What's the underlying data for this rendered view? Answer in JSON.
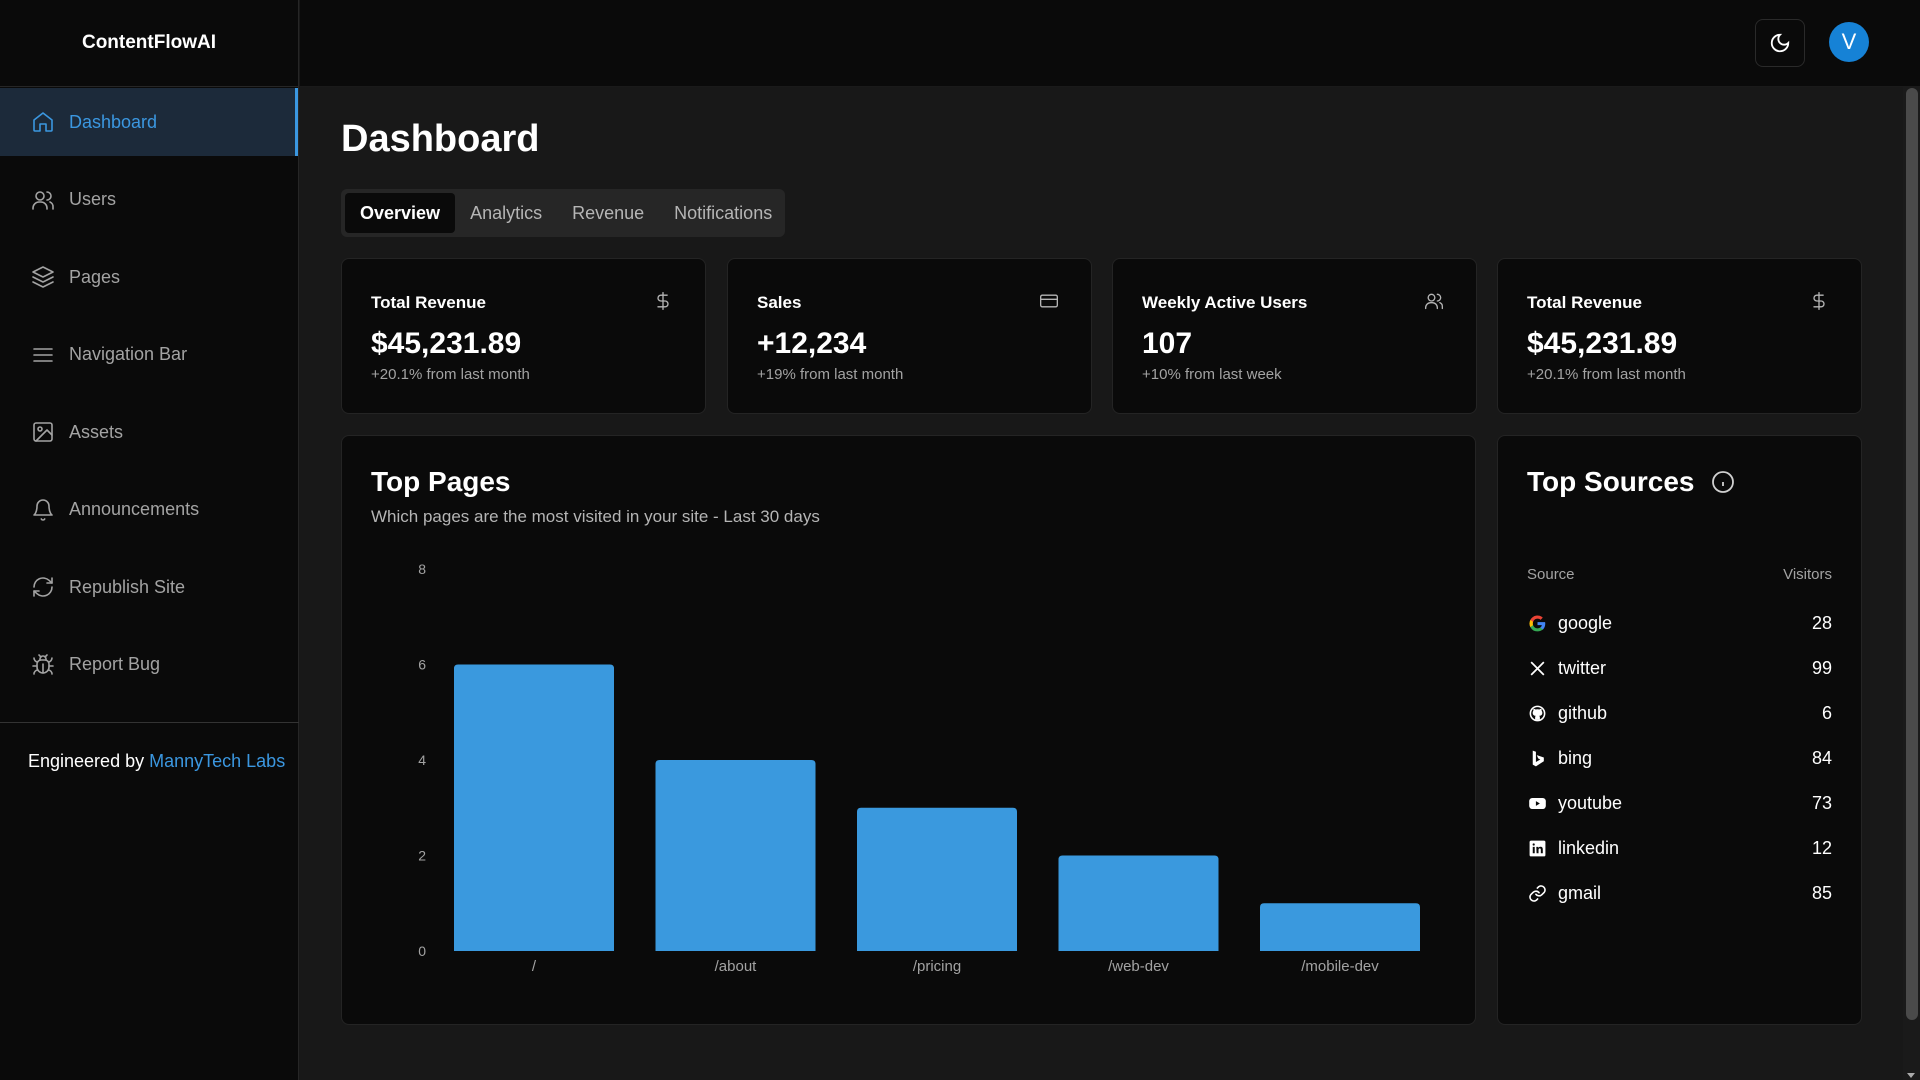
{
  "app": {
    "brand": "ContentFlowAI"
  },
  "sidebar": {
    "items": [
      {
        "label": "Dashboard",
        "icon": "home-icon",
        "active": true
      },
      {
        "label": "Users",
        "icon": "users-icon"
      },
      {
        "label": "Pages",
        "icon": "layers-icon"
      },
      {
        "label": "Navigation Bar",
        "icon": "menu-icon"
      },
      {
        "label": "Assets",
        "icon": "image-icon"
      },
      {
        "label": "Announcements",
        "icon": "bell-icon"
      },
      {
        "label": "Republish Site",
        "icon": "refresh-icon"
      },
      {
        "label": "Report Bug",
        "icon": "bug-icon"
      }
    ],
    "footer_prefix": "Engineered by",
    "footer_link": "MannyTech Labs"
  },
  "topbar": {
    "theme_icon": "moon-icon",
    "avatar_initial": "V"
  },
  "page": {
    "title": "Dashboard",
    "tabs": [
      "Overview",
      "Analytics",
      "Revenue",
      "Notifications"
    ],
    "active_tab": "Overview"
  },
  "stats": [
    {
      "title": "Total Revenue",
      "value": "$45,231.89",
      "sub": "+20.1% from last month",
      "icon": "dollar-icon"
    },
    {
      "title": "Sales",
      "value": "+12,234",
      "sub": "+19% from last month",
      "icon": "credit-card-icon"
    },
    {
      "title": "Weekly Active Users",
      "value": "107",
      "sub": "+10% from last week",
      "icon": "users-icon"
    },
    {
      "title": "Total Revenue",
      "value": "$45,231.89",
      "sub": "+20.1% from last month",
      "icon": "dollar-icon"
    }
  ],
  "top_pages": {
    "title": "Top Pages",
    "subtitle": "Which pages are the most visited in your site - Last 30 days"
  },
  "chart_data": {
    "type": "bar",
    "categories": [
      "/",
      "/about",
      "/pricing",
      "/web-dev",
      "/mobile-dev"
    ],
    "values": [
      6,
      4,
      3,
      2,
      1
    ],
    "ylim": [
      0,
      8
    ],
    "yticks": [
      0,
      2,
      4,
      6,
      8
    ],
    "grid": false,
    "color": "#3a99de"
  },
  "top_sources": {
    "title": "Top Sources",
    "col_source": "Source",
    "col_visitors": "Visitors",
    "rows": [
      {
        "name": "google",
        "visitors": "28",
        "icon": "google-icon"
      },
      {
        "name": "twitter",
        "visitors": "99",
        "icon": "x-icon"
      },
      {
        "name": "github",
        "visitors": "6",
        "icon": "github-icon"
      },
      {
        "name": "bing",
        "visitors": "84",
        "icon": "bing-icon"
      },
      {
        "name": "youtube",
        "visitors": "73",
        "icon": "youtube-icon"
      },
      {
        "name": "linkedin",
        "visitors": "12",
        "icon": "linkedin-icon"
      },
      {
        "name": "gmail",
        "visitors": "85",
        "icon": "link-icon"
      }
    ]
  },
  "colors": {
    "accent": "#3b97e0",
    "background": "#181818",
    "card": "#0a0a0a",
    "avatar": "#1682d6"
  }
}
